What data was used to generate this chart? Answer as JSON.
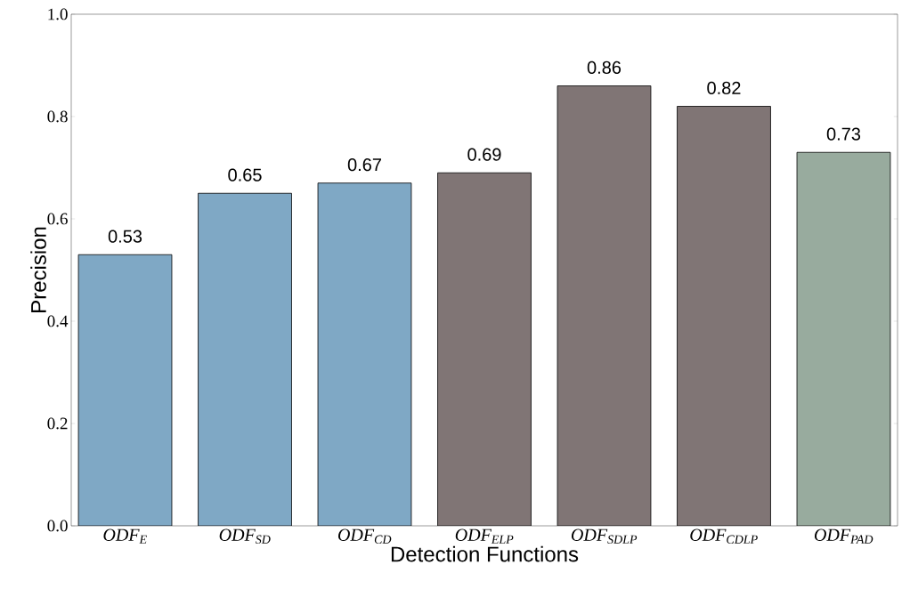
{
  "chart_data": {
    "type": "bar",
    "xlabel": "Detection Functions",
    "ylabel": "Precision",
    "categories": [
      "ODF$_{E}$",
      "ODF$_{SD}$",
      "ODF$_{CD}$",
      "ODF$_{ELP}$",
      "ODF$_{SDLP}$",
      "ODF$_{CDLP}$",
      "ODF$_{PAD}$"
    ],
    "values": [
      0.53,
      0.65,
      0.67,
      0.69,
      0.86,
      0.82,
      0.73
    ],
    "colors": [
      "#7fa8c5",
      "#7fa8c5",
      "#7fa8c5",
      "#807575",
      "#807575",
      "#807575",
      "#98ab9e"
    ],
    "ylim": [
      0,
      1
    ],
    "yticks": [
      {
        "value": 0,
        "label": "0.0"
      },
      {
        "value": 0.2,
        "label": "0.2"
      },
      {
        "value": 0.4,
        "label": "0.4"
      },
      {
        "value": 0.6,
        "label": "0.6"
      },
      {
        "value": 0.8,
        "label": "0.8"
      },
      {
        "value": 1,
        "label": "1.0"
      }
    ],
    "data_labels": true
  }
}
